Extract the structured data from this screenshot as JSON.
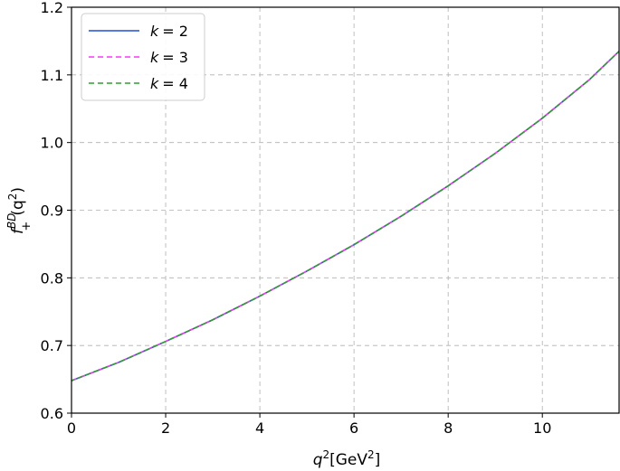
{
  "chart_data": {
    "type": "line",
    "xlabel": {
      "base": "q",
      "sup": "2",
      "unit_prefix": "[GeV",
      "unit_sup": "2",
      "unit_suffix": "]"
    },
    "ylabel": {
      "base": "f",
      "sup": "BD",
      "sub": "+",
      "arg_open": "(q",
      "arg_sup": "2",
      "arg_close": ")"
    },
    "xlim": [
      0,
      11.63
    ],
    "ylim": [
      0.6,
      1.2
    ],
    "xticks": [
      0,
      2,
      4,
      6,
      8,
      10
    ],
    "yticks": [
      0.6,
      0.7,
      0.8,
      0.9,
      1.0,
      1.1,
      1.2
    ],
    "xtick_labels": [
      "0",
      "2",
      "4",
      "6",
      "8",
      "10"
    ],
    "ytick_labels": [
      "0.6",
      "0.7",
      "0.8",
      "0.9",
      "1.0",
      "1.1",
      "1.2"
    ],
    "grid": true,
    "legend_position": "top-left",
    "x": [
      0,
      1,
      2,
      3,
      4,
      5,
      6,
      7,
      8,
      9,
      10,
      11,
      11.63
    ],
    "series": [
      {
        "name": "k = 2",
        "name_var": "k",
        "name_value": "= 2",
        "color": "#1f4fd8",
        "style": "solid",
        "values": [
          0.648,
          0.675,
          0.706,
          0.738,
          0.773,
          0.81,
          0.849,
          0.891,
          0.936,
          0.984,
          1.036,
          1.093,
          1.135
        ]
      },
      {
        "name": "k = 3",
        "name_var": "k",
        "name_value": "= 3",
        "color": "#ff33ff",
        "style": "dashed",
        "values": [
          0.648,
          0.675,
          0.706,
          0.738,
          0.773,
          0.81,
          0.849,
          0.891,
          0.936,
          0.984,
          1.036,
          1.093,
          1.135
        ]
      },
      {
        "name": "k = 4",
        "name_var": "k",
        "name_value": "= 4",
        "color": "#2ca02c",
        "style": "dashed",
        "values": [
          0.648,
          0.675,
          0.706,
          0.738,
          0.773,
          0.81,
          0.849,
          0.891,
          0.936,
          0.984,
          1.036,
          1.093,
          1.135
        ]
      }
    ]
  }
}
